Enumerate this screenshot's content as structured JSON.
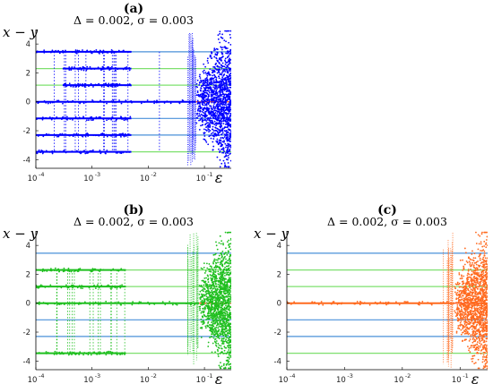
{
  "chart_data": [
    {
      "panel": "(a)",
      "type": "scatter",
      "title": "Δ = 0.002, σ = 0.003",
      "ylabel": "x − y",
      "xlabel": "ε",
      "xscale": "log",
      "xlim": [
        0.0001,
        0.3
      ],
      "ylim": [
        -4.6,
        5.0
      ],
      "xticks": [
        {
          "value": 0.0001,
          "base": "10",
          "exp": "-4"
        },
        {
          "value": 0.001,
          "base": "10",
          "exp": "-3"
        },
        {
          "value": 0.01,
          "base": "10",
          "exp": "-2"
        },
        {
          "value": 0.1,
          "base": "10",
          "exp": "-1"
        }
      ],
      "yticks": [
        "-4",
        "-2",
        "0",
        "2",
        "4"
      ],
      "point_color": "#0000ff",
      "reference_lines": [
        {
          "y": 3.46,
          "color": "#4a90d9"
        },
        {
          "y": 2.3,
          "color": "#7ee06f"
        },
        {
          "y": 1.15,
          "color": "#7ee06f"
        },
        {
          "y": 0,
          "color": "#ff4c1a"
        },
        {
          "y": -1.15,
          "color": "#4a90d9"
        },
        {
          "y": -2.3,
          "color": "#4a90d9"
        },
        {
          "y": -3.46,
          "color": "#7ee06f"
        }
      ],
      "branches": [
        {
          "y": 3.46,
          "x_from": 0.0001,
          "x_to": 0.005
        },
        {
          "y": 2.3,
          "x_from": 0.0003,
          "x_to": 0.005
        },
        {
          "y": 1.15,
          "x_from": 0.0003,
          "x_to": 0.005
        },
        {
          "y": 0,
          "x_from": 0.0001,
          "x_to": 0.07
        },
        {
          "y": -1.15,
          "x_from": 0.0001,
          "x_to": 0.005
        },
        {
          "y": -2.3,
          "x_from": 0.0001,
          "x_to": 0.005
        },
        {
          "y": -3.46,
          "x_from": 0.0001,
          "x_to": 0.005
        }
      ],
      "chaos_region": {
        "x_from": 0.07,
        "x_to": 0.3,
        "y_from": -4.5,
        "y_to": 4.9
      }
    },
    {
      "panel": "(b)",
      "type": "scatter",
      "title": "Δ = 0.002, σ = 0.003",
      "ylabel": "x − y",
      "xlabel": "ε",
      "xscale": "log",
      "xlim": [
        0.0001,
        0.3
      ],
      "ylim": [
        -4.6,
        5.0
      ],
      "xticks": [
        {
          "value": 0.0001,
          "base": "10",
          "exp": "-4"
        },
        {
          "value": 0.001,
          "base": "10",
          "exp": "-3"
        },
        {
          "value": 0.01,
          "base": "10",
          "exp": "-2"
        },
        {
          "value": 0.1,
          "base": "10",
          "exp": "-1"
        }
      ],
      "yticks": [
        "-4",
        "-2",
        "0",
        "2",
        "4"
      ],
      "point_color": "#1fbf1f",
      "reference_lines": [
        {
          "y": 3.46,
          "color": "#4a90d9"
        },
        {
          "y": 2.3,
          "color": "#7ee06f"
        },
        {
          "y": 1.15,
          "color": "#7ee06f"
        },
        {
          "y": 0,
          "color": "#ff4c1a"
        },
        {
          "y": -1.15,
          "color": "#4a90d9"
        },
        {
          "y": -2.3,
          "color": "#4a90d9"
        },
        {
          "y": -3.46,
          "color": "#7ee06f"
        }
      ],
      "branches": [
        {
          "y": 2.3,
          "x_from": 0.0001,
          "x_to": 0.004
        },
        {
          "y": 1.15,
          "x_from": 0.0001,
          "x_to": 0.004
        },
        {
          "y": 0,
          "x_from": 0.0001,
          "x_to": 0.08
        },
        {
          "y": -3.46,
          "x_from": 0.0001,
          "x_to": 0.004
        }
      ],
      "chaos_region": {
        "x_from": 0.08,
        "x_to": 0.3,
        "y_from": -4.5,
        "y_to": 4.9
      }
    },
    {
      "panel": "(c)",
      "type": "scatter",
      "title": "Δ = 0.002, σ = 0.003",
      "ylabel": "x − y",
      "xlabel": "ε",
      "xscale": "log",
      "xlim": [
        0.0001,
        0.3
      ],
      "ylim": [
        -4.6,
        5.0
      ],
      "xticks": [
        {
          "value": 0.0001,
          "base": "10",
          "exp": "-4"
        },
        {
          "value": 0.001,
          "base": "10",
          "exp": "-3"
        },
        {
          "value": 0.01,
          "base": "10",
          "exp": "-2"
        },
        {
          "value": 0.1,
          "base": "10",
          "exp": "-1"
        }
      ],
      "yticks": [
        "-4",
        "-2",
        "0",
        "2",
        "4"
      ],
      "point_color": "#ff6a1f",
      "reference_lines": [
        {
          "y": 3.46,
          "color": "#4a90d9"
        },
        {
          "y": 2.3,
          "color": "#7ee06f"
        },
        {
          "y": 1.15,
          "color": "#7ee06f"
        },
        {
          "y": 0,
          "color": "#ff4c1a"
        },
        {
          "y": -1.15,
          "color": "#4a90d9"
        },
        {
          "y": -2.3,
          "color": "#4a90d9"
        },
        {
          "y": -3.46,
          "color": "#7ee06f"
        }
      ],
      "branches": [
        {
          "y": 0,
          "x_from": 0.0001,
          "x_to": 0.08
        }
      ],
      "chaos_region": {
        "x_from": 0.08,
        "x_to": 0.3,
        "y_from": -4.5,
        "y_to": 4.9
      }
    }
  ]
}
